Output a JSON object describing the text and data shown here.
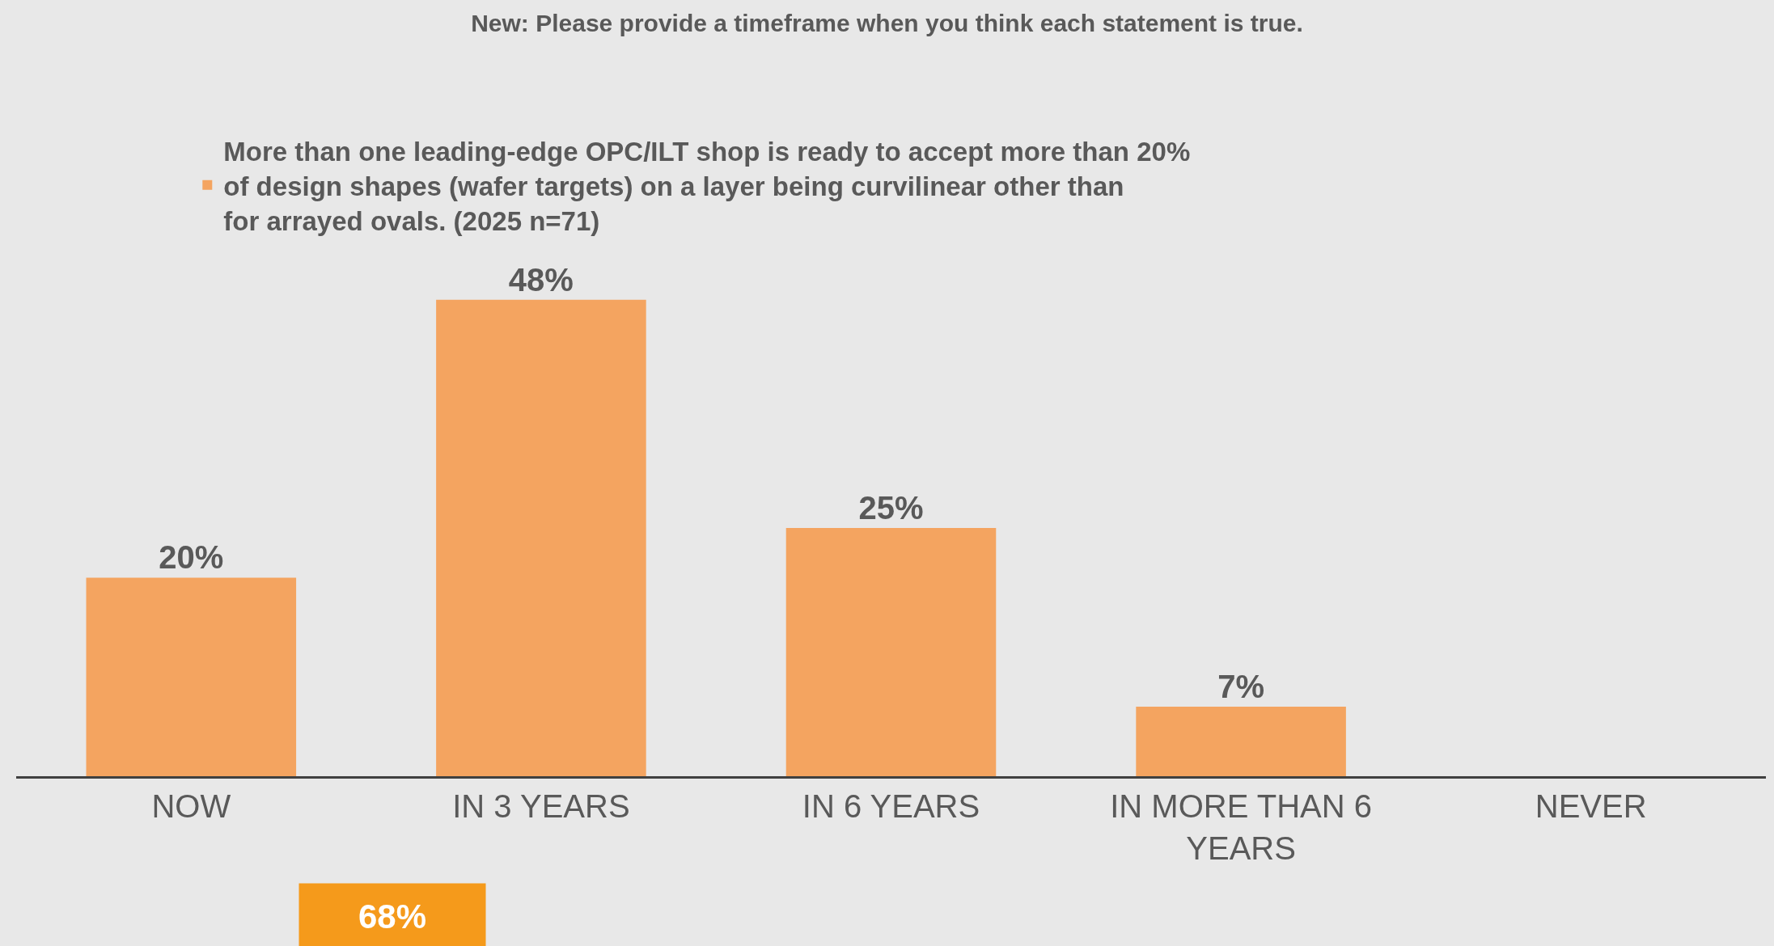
{
  "chart_data": {
    "type": "bar",
    "title": "New: Please provide a timeframe when you think each statement is true.",
    "categories": [
      "NOW",
      "IN 3 YEARS",
      "IN 6 YEARS",
      "IN MORE THAN 6 YEARS",
      "NEVER"
    ],
    "series": [
      {
        "name": "More than one leading-edge OPC/ILT shop is ready to accept more than 20% of design shapes (wafer targets) on a layer being curvilinear other than for arrayed ovals. (2025 n=71)",
        "color": "#f4a460",
        "values": [
          20,
          48,
          25,
          7,
          0
        ],
        "value_labels": [
          "20%",
          "48%",
          "25%",
          "7%",
          null
        ]
      }
    ],
    "annotations": [
      "68%"
    ],
    "legend": "top",
    "grid": false
  }
}
